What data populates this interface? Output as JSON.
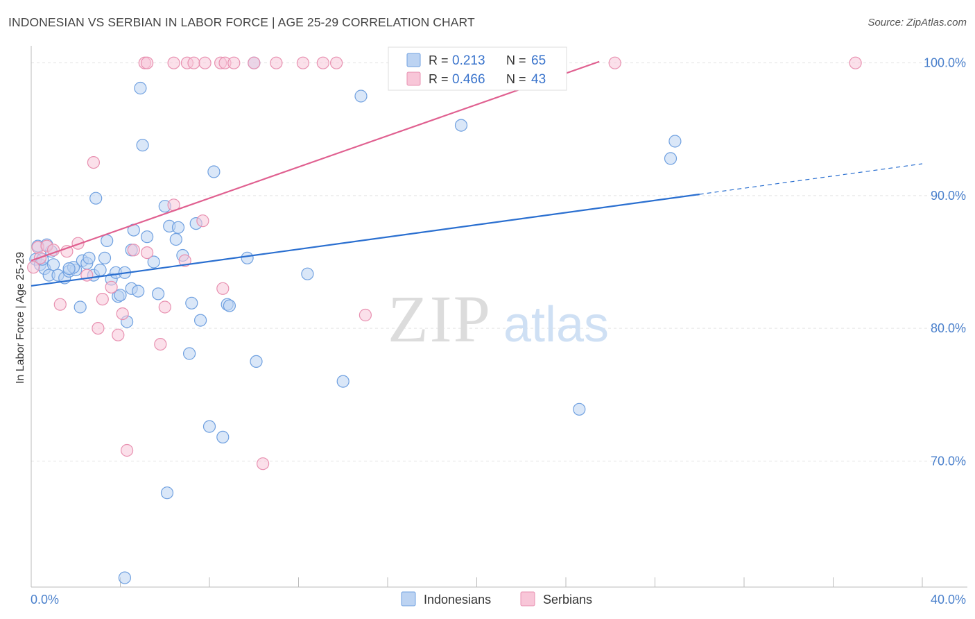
{
  "title": "INDONESIAN VS SERBIAN IN LABOR FORCE | AGE 25-29 CORRELATION CHART",
  "source": "Source: ZipAtlas.com",
  "watermark": {
    "zip": "ZIP",
    "atlas": "atlas"
  },
  "chart_data": {
    "type": "scatter",
    "title": "INDONESIAN VS SERBIAN IN LABOR FORCE | AGE 25-29 CORRELATION CHART",
    "xlabel": "",
    "ylabel": "In Labor Force | Age 25-29",
    "xlim": [
      0,
      40
    ],
    "ylim": [
      60.5,
      101.5
    ],
    "x_tick_labels": [
      {
        "value": 0,
        "label": "0.0%"
      },
      {
        "value": 40,
        "label": "40.0%"
      }
    ],
    "y_tick_labels": [
      {
        "value": 100,
        "label": "100.0%"
      },
      {
        "value": 90,
        "label": "90.0%"
      },
      {
        "value": 80,
        "label": "80.0%"
      },
      {
        "value": 70,
        "label": "70.0%"
      }
    ],
    "grid": true,
    "legend_position": "top-center",
    "series": [
      {
        "name": "Indonesians",
        "color": "#6fa0e0",
        "fill": "#bcd3f2",
        "R": "0.213",
        "N": "65",
        "trend": {
          "x0": 0,
          "y0": 83.2,
          "x1": 30.0,
          "y1": 90.1,
          "dashed_to_x": 40,
          "dashed_to_y": 92.4,
          "color": "#2a6fd0"
        },
        "points": [
          [
            0.2,
            85.2
          ],
          [
            0.4,
            84.8
          ],
          [
            0.6,
            84.5
          ],
          [
            0.3,
            86.2
          ],
          [
            0.9,
            85.8
          ],
          [
            0.7,
            86.3
          ],
          [
            1.0,
            84.8
          ],
          [
            0.8,
            84.0
          ],
          [
            1.2,
            84.0
          ],
          [
            1.5,
            83.8
          ],
          [
            1.7,
            84.3
          ],
          [
            2.0,
            84.4
          ],
          [
            1.9,
            84.6
          ],
          [
            2.3,
            85.1
          ],
          [
            2.5,
            84.9
          ],
          [
            2.6,
            85.3
          ],
          [
            3.3,
            85.3
          ],
          [
            3.4,
            86.6
          ],
          [
            3.6,
            83.7
          ],
          [
            3.8,
            84.2
          ],
          [
            3.9,
            82.4
          ],
          [
            4.0,
            82.5
          ],
          [
            4.2,
            84.2
          ],
          [
            4.3,
            80.5
          ],
          [
            4.5,
            85.9
          ],
          [
            4.5,
            83.0
          ],
          [
            4.6,
            87.4
          ],
          [
            4.8,
            82.8
          ],
          [
            5.0,
            93.8
          ],
          [
            5.2,
            86.9
          ],
          [
            5.5,
            85.0
          ],
          [
            5.7,
            82.6
          ],
          [
            6.0,
            89.2
          ],
          [
            6.2,
            87.7
          ],
          [
            6.6,
            87.6
          ],
          [
            6.5,
            86.7
          ],
          [
            6.8,
            85.5
          ],
          [
            7.1,
            78.1
          ],
          [
            7.2,
            81.9
          ],
          [
            7.4,
            87.9
          ],
          [
            7.6,
            80.6
          ],
          [
            8.0,
            72.6
          ],
          [
            8.2,
            91.8
          ],
          [
            8.6,
            71.8
          ],
          [
            8.8,
            81.8
          ],
          [
            8.9,
            81.7
          ],
          [
            9.7,
            85.3
          ],
          [
            10.1,
            77.5
          ],
          [
            12.4,
            84.1
          ],
          [
            14.0,
            76.0
          ],
          [
            14.8,
            97.5
          ],
          [
            2.2,
            81.6
          ],
          [
            2.9,
            89.8
          ],
          [
            4.9,
            98.1
          ],
          [
            10.0,
            100.0
          ],
          [
            19.3,
            95.3
          ],
          [
            24.6,
            73.9
          ],
          [
            28.7,
            92.8
          ],
          [
            28.9,
            94.1
          ],
          [
            6.1,
            67.6
          ],
          [
            4.2,
            61.2
          ],
          [
            1.7,
            84.5
          ],
          [
            2.8,
            84.0
          ],
          [
            0.5,
            85.2
          ],
          [
            3.1,
            84.4
          ]
        ]
      },
      {
        "name": "Serbians",
        "color": "#e890b0",
        "fill": "#f8c6d8",
        "R": "0.466",
        "N": "43",
        "trend": {
          "x0": 0,
          "y0": 85.1,
          "x1": 25.5,
          "y1": 100.1,
          "color": "#e06090"
        },
        "points": [
          [
            0.1,
            84.6
          ],
          [
            0.3,
            86.1
          ],
          [
            0.4,
            85.3
          ],
          [
            0.7,
            86.2
          ],
          [
            1.0,
            85.9
          ],
          [
            1.6,
            85.8
          ],
          [
            2.1,
            86.4
          ],
          [
            2.5,
            84.0
          ],
          [
            2.8,
            92.5
          ],
          [
            3.0,
            80.0
          ],
          [
            3.2,
            82.2
          ],
          [
            3.6,
            83.1
          ],
          [
            3.9,
            79.5
          ],
          [
            4.1,
            81.1
          ],
          [
            4.3,
            70.8
          ],
          [
            4.6,
            85.9
          ],
          [
            5.2,
            85.7
          ],
          [
            5.8,
            78.8
          ],
          [
            6.0,
            81.6
          ],
          [
            6.4,
            89.3
          ],
          [
            6.9,
            85.1
          ],
          [
            7.7,
            88.1
          ],
          [
            8.6,
            83.0
          ],
          [
            10.4,
            69.8
          ],
          [
            15.0,
            81.0
          ],
          [
            1.3,
            81.8
          ],
          [
            5.1,
            100.0
          ],
          [
            5.2,
            100.0
          ],
          [
            6.4,
            100.0
          ],
          [
            7.0,
            100.0
          ],
          [
            7.3,
            100.0
          ],
          [
            7.8,
            100.0
          ],
          [
            8.5,
            100.0
          ],
          [
            8.7,
            100.0
          ],
          [
            9.1,
            100.0
          ],
          [
            10.0,
            100.0
          ],
          [
            11.0,
            100.0
          ],
          [
            12.2,
            100.0
          ],
          [
            13.1,
            100.0
          ],
          [
            13.7,
            100.0
          ],
          [
            18.7,
            100.0
          ],
          [
            26.2,
            100.0
          ],
          [
            37.0,
            100.0
          ]
        ]
      }
    ]
  },
  "legend": {
    "r_label": "R =",
    "n_label": "N =",
    "items": [
      {
        "name": "Indonesians",
        "R": "0.213",
        "N": "65"
      },
      {
        "name": "Serbians",
        "R": "0.466",
        "N": "43"
      }
    ]
  }
}
